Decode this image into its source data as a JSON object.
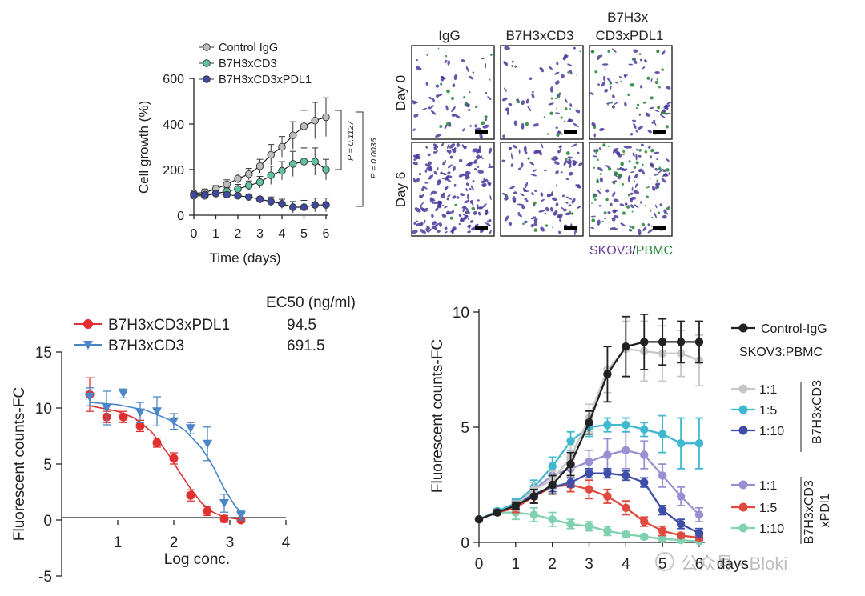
{
  "chart_data": [
    {
      "type": "line",
      "title": "",
      "xlabel": "Time (days)",
      "ylabel": "Cell growth (%)",
      "x": [
        0,
        0.5,
        1,
        1.5,
        2,
        2.5,
        3,
        3.5,
        4,
        4.5,
        5,
        5.5,
        6
      ],
      "xticks": [
        0,
        1,
        2,
        3,
        4,
        5,
        6
      ],
      "yticks": [
        0,
        200,
        400,
        600
      ],
      "xlim": [
        0,
        6
      ],
      "ylim": [
        0,
        600
      ],
      "series": [
        {
          "name": "Control IgG",
          "color": "#bdbdbd",
          "values": [
            95,
            100,
            115,
            135,
            160,
            180,
            215,
            265,
            300,
            350,
            390,
            415,
            430
          ],
          "errors": [
            15,
            15,
            15,
            20,
            20,
            25,
            30,
            45,
            45,
            60,
            70,
            80,
            85
          ]
        },
        {
          "name": "B7H3xCD3",
          "color": "#5fc2a3",
          "values": [
            85,
            85,
            95,
            105,
            115,
            130,
            145,
            175,
            195,
            225,
            235,
            235,
            200
          ],
          "errors": [
            15,
            15,
            15,
            15,
            20,
            20,
            25,
            40,
            40,
            55,
            60,
            60,
            45
          ]
        },
        {
          "name": "B7H3xCD3xPDL1",
          "color": "#3f4a9e",
          "values": [
            90,
            90,
            95,
            90,
            85,
            80,
            70,
            60,
            50,
            35,
            35,
            45,
            45
          ],
          "errors": [
            10,
            10,
            10,
            10,
            10,
            10,
            10,
            20,
            20,
            25,
            30,
            30,
            30
          ]
        }
      ],
      "annotations": [
        {
          "text": "P = 0.1127"
        },
        {
          "text": "P = 0.0036"
        }
      ]
    },
    {
      "type": "table",
      "columns": [
        "IgG",
        "B7H3xCD3",
        "B7H3x\nCD3xPDL1"
      ],
      "rows": [
        "Day 0",
        "Day 6"
      ],
      "caption_parts": [
        "SKOV3",
        "/",
        "PBMC"
      ],
      "caption_colors": {
        "SKOV3": "#6a3d9a",
        "PBMC": "#2e8b3e"
      },
      "cell_density": [
        [
          0.25,
          0.25,
          0.3
        ],
        [
          0.95,
          0.55,
          0.5
        ]
      ]
    },
    {
      "type": "scatter",
      "title": "",
      "xlabel": "Log conc.",
      "ylabel": "Fluorescent counts-FC",
      "xticks": [
        1,
        2,
        3,
        4
      ],
      "yticks": [
        -5,
        0,
        5,
        10,
        15
      ],
      "xlim": [
        0,
        4
      ],
      "ylim": [
        -5,
        15
      ],
      "legend_header": "EC50 (ng/ml)",
      "series": [
        {
          "name": "B7H3xCD3xPDL1",
          "ec50": "94.5",
          "color": "#e03030",
          "marker": "circle",
          "x": [
            0.5,
            0.8,
            1.1,
            1.4,
            1.7,
            2.0,
            2.3,
            2.6,
            2.9,
            3.2
          ],
          "y": [
            11.2,
            9.2,
            9.2,
            8.4,
            6.9,
            5.5,
            2.2,
            0.8,
            0.1,
            0.0
          ],
          "errors": [
            1.5,
            0.5,
            0.5,
            0.5,
            0.4,
            0.5,
            0.5,
            0.4,
            0.3,
            0.2
          ],
          "fit": [
            [
              0.5,
              10.2
            ],
            [
              1.0,
              9.7
            ],
            [
              1.3,
              9.1
            ],
            [
              1.6,
              7.9
            ],
            [
              1.9,
              5.9
            ],
            [
              2.1,
              4.3
            ],
            [
              2.3,
              2.8
            ],
            [
              2.5,
              1.5
            ],
            [
              2.7,
              0.7
            ],
            [
              2.9,
              0.25
            ],
            [
              3.2,
              0.05
            ]
          ]
        },
        {
          "name": "B7H3xCD3",
          "ec50": "691.5",
          "color": "#4a86c8",
          "marker": "triangle-down",
          "x": [
            0.5,
            0.8,
            1.1,
            1.4,
            1.7,
            2.0,
            2.3,
            2.6,
            2.9,
            3.2
          ],
          "y": [
            11.0,
            10.0,
            11.3,
            9.6,
            9.7,
            8.8,
            8.2,
            6.8,
            1.5,
            0.4
          ],
          "errors": [
            0.8,
            1.5,
            0.4,
            0.9,
            1.3,
            0.7,
            0.5,
            1.5,
            0.8,
            0.4
          ],
          "fit": [
            [
              0.5,
              10.5
            ],
            [
              1.0,
              10.3
            ],
            [
              1.5,
              9.8
            ],
            [
              1.9,
              9.0
            ],
            [
              2.2,
              8.0
            ],
            [
              2.5,
              6.4
            ],
            [
              2.7,
              4.8
            ],
            [
              2.9,
              2.8
            ],
            [
              3.1,
              1.2
            ],
            [
              3.2,
              0.7
            ]
          ]
        }
      ]
    },
    {
      "type": "line",
      "title": "",
      "xlabel": "days",
      "ylabel": "Fluorescent counts-FC",
      "x": [
        0,
        0.5,
        1,
        1.5,
        2,
        2.5,
        3,
        3.5,
        4,
        4.5,
        5,
        5.5,
        6
      ],
      "xticks": [
        0,
        1,
        2,
        3,
        4,
        5,
        6
      ],
      "yticks": [
        0,
        5,
        10
      ],
      "xlim": [
        0,
        6
      ],
      "ylim": [
        0,
        10
      ],
      "legend_header": "SKOV3:PBMC",
      "group_labels": [
        "B7H3xCD3",
        "B7H3xCD3\nxPDl1"
      ],
      "series": [
        {
          "name": "Control-IgG",
          "color": "#222222",
          "values": [
            1.0,
            1.3,
            1.6,
            2.0,
            2.5,
            3.4,
            5.2,
            7.3,
            8.5,
            8.7,
            8.7,
            8.7,
            8.7
          ],
          "errors": [
            0.05,
            0.1,
            0.15,
            0.3,
            0.4,
            0.5,
            0.5,
            1.2,
            1.3,
            1.2,
            1.0,
            0.9,
            0.9
          ]
        },
        {
          "name": "1:1",
          "group": "B7H3xCD3",
          "color": "#c7c7c7",
          "values": [
            1.0,
            1.3,
            1.6,
            2.3,
            2.7,
            3.7,
            5.4,
            7.5,
            8.4,
            8.3,
            8.2,
            8.2,
            7.9
          ],
          "errors": [
            0.05,
            0.1,
            0.2,
            0.3,
            0.4,
            0.5,
            0.6,
            1.0,
            1.2,
            1.3,
            1.2,
            1.0,
            1.1
          ]
        },
        {
          "name": "1:5",
          "group": "B7H3xCD3",
          "color": "#3fb8d0",
          "values": [
            1.0,
            1.35,
            1.7,
            2.4,
            3.3,
            4.4,
            5.0,
            5.1,
            5.1,
            4.9,
            4.7,
            4.3,
            4.3
          ],
          "errors": [
            0.05,
            0.1,
            0.2,
            0.3,
            0.4,
            0.4,
            0.4,
            0.3,
            0.3,
            0.3,
            0.8,
            1.1,
            1.1
          ]
        },
        {
          "name": "1:10",
          "group": "B7H3xCD3",
          "color": "#3c4ea8",
          "values": [
            1.0,
            1.35,
            1.65,
            2.1,
            2.4,
            2.6,
            3.0,
            3.0,
            2.9,
            2.6,
            1.4,
            0.8,
            0.4
          ],
          "errors": [
            0.05,
            0.1,
            0.15,
            0.2,
            0.2,
            0.2,
            0.2,
            0.2,
            0.2,
            0.2,
            0.2,
            0.2,
            0.2
          ]
        },
        {
          "name": "1:1",
          "group": "B7H3xCD3xPDl1",
          "color": "#9b8fd3",
          "values": [
            1.0,
            1.35,
            1.65,
            2.3,
            2.9,
            3.2,
            3.5,
            3.8,
            4.0,
            3.8,
            2.9,
            2.0,
            1.2
          ],
          "errors": [
            0.05,
            0.1,
            0.2,
            0.3,
            0.4,
            0.4,
            0.5,
            0.7,
            0.8,
            0.6,
            0.5,
            0.4,
            0.3
          ]
        },
        {
          "name": "1:5",
          "group": "B7H3xCD3xPDl1",
          "color": "#e0493f",
          "values": [
            1.0,
            1.3,
            1.5,
            2.0,
            2.4,
            2.5,
            2.3,
            2.0,
            1.5,
            0.9,
            0.5,
            0.3,
            0.2
          ],
          "errors": [
            0.05,
            0.1,
            0.2,
            0.3,
            0.3,
            0.3,
            0.4,
            0.3,
            0.3,
            0.2,
            0.2,
            0.1,
            0.1
          ]
        },
        {
          "name": "1:10",
          "group": "B7H3xCD3xPDl1",
          "color": "#7fd1b0",
          "values": [
            1.0,
            1.3,
            1.3,
            1.2,
            1.0,
            0.8,
            0.7,
            0.5,
            0.35,
            0.25,
            0.15,
            0.1,
            0.05
          ],
          "errors": [
            0.05,
            0.1,
            0.3,
            0.3,
            0.3,
            0.2,
            0.2,
            0.2,
            0.1,
            0.1,
            0.1,
            0.1,
            0.05
          ]
        }
      ]
    }
  ],
  "watermark": "公众号 · Bloki"
}
